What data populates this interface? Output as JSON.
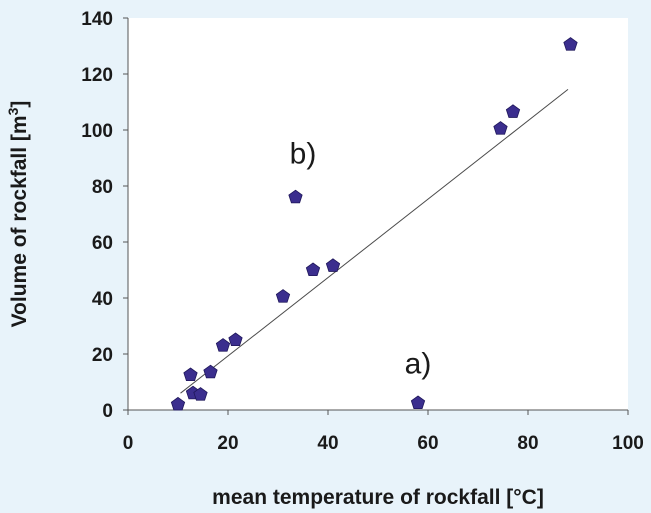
{
  "chart_data": {
    "type": "scatter",
    "title": "",
    "xlabel": "mean temperature of rockfall [°C]",
    "ylabel_main": "Volume of rockfall [m",
    "ylabel_sup": "3",
    "ylabel_close": "]",
    "xlim": [
      0,
      100
    ],
    "ylim": [
      0,
      140
    ],
    "x_ticks": [
      "0",
      "20",
      "40",
      "60",
      "80",
      "100"
    ],
    "y_ticks": [
      "0",
      "20",
      "40",
      "60",
      "80",
      "100",
      "120",
      "140"
    ],
    "grid": false,
    "legend": "none",
    "marker": "pentagon",
    "marker_color": "#3b2e8e",
    "points": [
      {
        "x": 10,
        "y": 2
      },
      {
        "x": 12.5,
        "y": 12.5
      },
      {
        "x": 13,
        "y": 6
      },
      {
        "x": 14.5,
        "y": 5.5
      },
      {
        "x": 16.5,
        "y": 13.5
      },
      {
        "x": 19,
        "y": 23
      },
      {
        "x": 21.5,
        "y": 25
      },
      {
        "x": 31,
        "y": 40.5
      },
      {
        "x": 33.5,
        "y": 76
      },
      {
        "x": 37,
        "y": 50
      },
      {
        "x": 41,
        "y": 51.5
      },
      {
        "x": 58,
        "y": 2.5
      },
      {
        "x": 74.5,
        "y": 100.5
      },
      {
        "x": 77,
        "y": 106.5
      },
      {
        "x": 88.5,
        "y": 130.5
      }
    ],
    "trendline": {
      "x1": 10.5,
      "y1": 6,
      "x2": 88,
      "y2": 114.5
    },
    "annotations": [
      {
        "text": "b)",
        "x": 35,
        "y": 88
      },
      {
        "text": "a)",
        "x": 58,
        "y": 13
      }
    ]
  }
}
